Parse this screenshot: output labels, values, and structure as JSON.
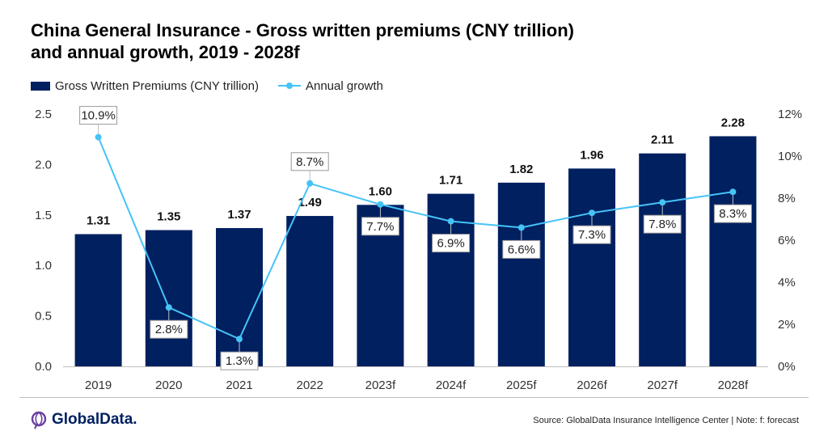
{
  "title": {
    "line1": "China General Insurance - Gross written premiums (CNY trillion)",
    "line2": "and annual growth, 2019 - 2028f"
  },
  "legend": {
    "bar_label": "Gross Written Premiums (CNY trillion)",
    "line_label": "Annual growth"
  },
  "colors": {
    "bar": "#002060",
    "line": "#45c3f7",
    "axis_text": "#333333",
    "grid": "#d9d9d9"
  },
  "chart_data": {
    "type": "bar",
    "categories": [
      "2019",
      "2020",
      "2021",
      "2022",
      "2023f",
      "2024f",
      "2025f",
      "2026f",
      "2027f",
      "2028f"
    ],
    "series": [
      {
        "name": "Gross Written Premiums (CNY trillion)",
        "type": "bar",
        "axis": "left",
        "values": [
          1.31,
          1.35,
          1.37,
          1.49,
          1.6,
          1.71,
          1.82,
          1.96,
          2.11,
          2.28
        ],
        "labels": [
          "1.31",
          "1.35",
          "1.37",
          "1.49",
          "1.60",
          "1.71",
          "1.82",
          "1.96",
          "2.11",
          "2.28"
        ]
      },
      {
        "name": "Annual growth",
        "type": "line",
        "axis": "right",
        "values": [
          10.9,
          2.8,
          1.3,
          8.7,
          7.7,
          6.9,
          6.6,
          7.3,
          7.8,
          8.3
        ],
        "labels": [
          "10.9%",
          "2.8%",
          "1.3%",
          "8.7%",
          "7.7%",
          "6.9%",
          "6.6%",
          "7.3%",
          "7.8%",
          "8.3%"
        ],
        "label_position": [
          "above",
          "below",
          "below",
          "above",
          "below",
          "below",
          "below",
          "below",
          "below",
          "below"
        ]
      }
    ],
    "ylim_left": [
      0,
      2.5
    ],
    "yticks_left": [
      "0.0",
      "0.5",
      "1.0",
      "1.5",
      "2.0",
      "2.5"
    ],
    "ylim_right": [
      0,
      12
    ],
    "yticks_right": [
      "0%",
      "2%",
      "4%",
      "6%",
      "8%",
      "10%",
      "12%"
    ],
    "grid": false,
    "legend_position": "top-left"
  },
  "footer": {
    "logo_text": "GlobalData.",
    "source": "Source: GlobalData Insurance Intelligence Center | Note: f: forecast"
  }
}
